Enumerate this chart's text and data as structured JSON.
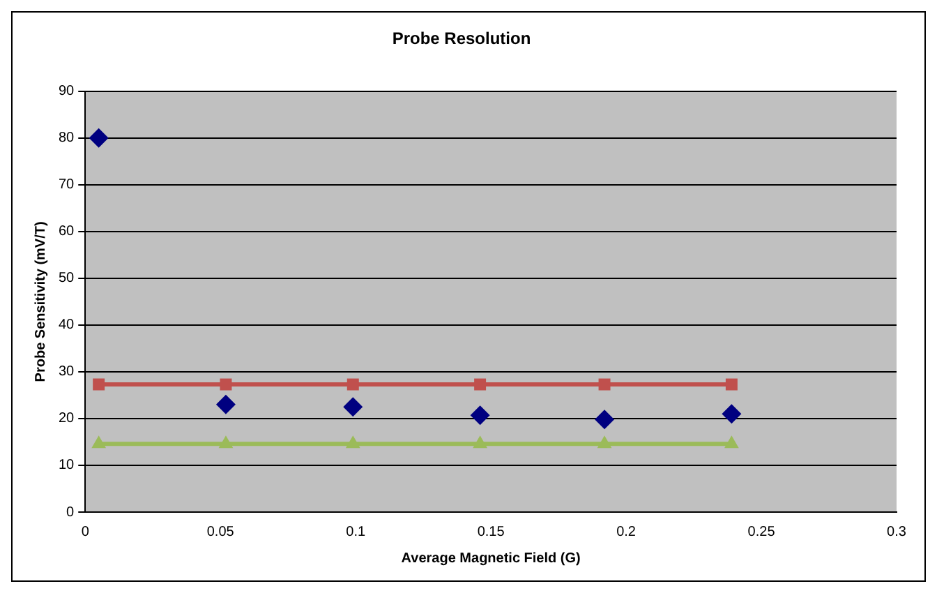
{
  "chart_data": {
    "type": "line",
    "title": "Probe Resolution",
    "xlabel": "Average Magnetic Field (G)",
    "ylabel": "Probe Sensitivity (mV/T)",
    "x": [
      0.005,
      0.052,
      0.099,
      0.146,
      0.192,
      0.239
    ],
    "series": [
      {
        "type": "scatter",
        "color": "#000080",
        "marker": "diamond",
        "values": [
          80,
          23,
          22.5,
          20.7,
          19.8,
          21
        ]
      },
      {
        "color": "#c0504d",
        "marker": "square",
        "values": [
          27.3,
          27.3,
          27.3,
          27.3,
          27.3,
          27.3
        ]
      },
      {
        "color": "#9bbb59",
        "marker": "triangle",
        "values": [
          14.6,
          14.6,
          14.6,
          14.6,
          14.6,
          14.6
        ]
      }
    ],
    "xlim": [
      0,
      0.3
    ],
    "xticks": [
      0,
      0.05,
      0.1,
      0.15,
      0.2,
      0.25,
      0.3
    ],
    "ylim": [
      0,
      90
    ],
    "yticks": [
      0,
      10,
      20,
      30,
      40,
      50,
      60,
      70,
      80,
      90
    ],
    "grid": "y",
    "legend": false
  }
}
